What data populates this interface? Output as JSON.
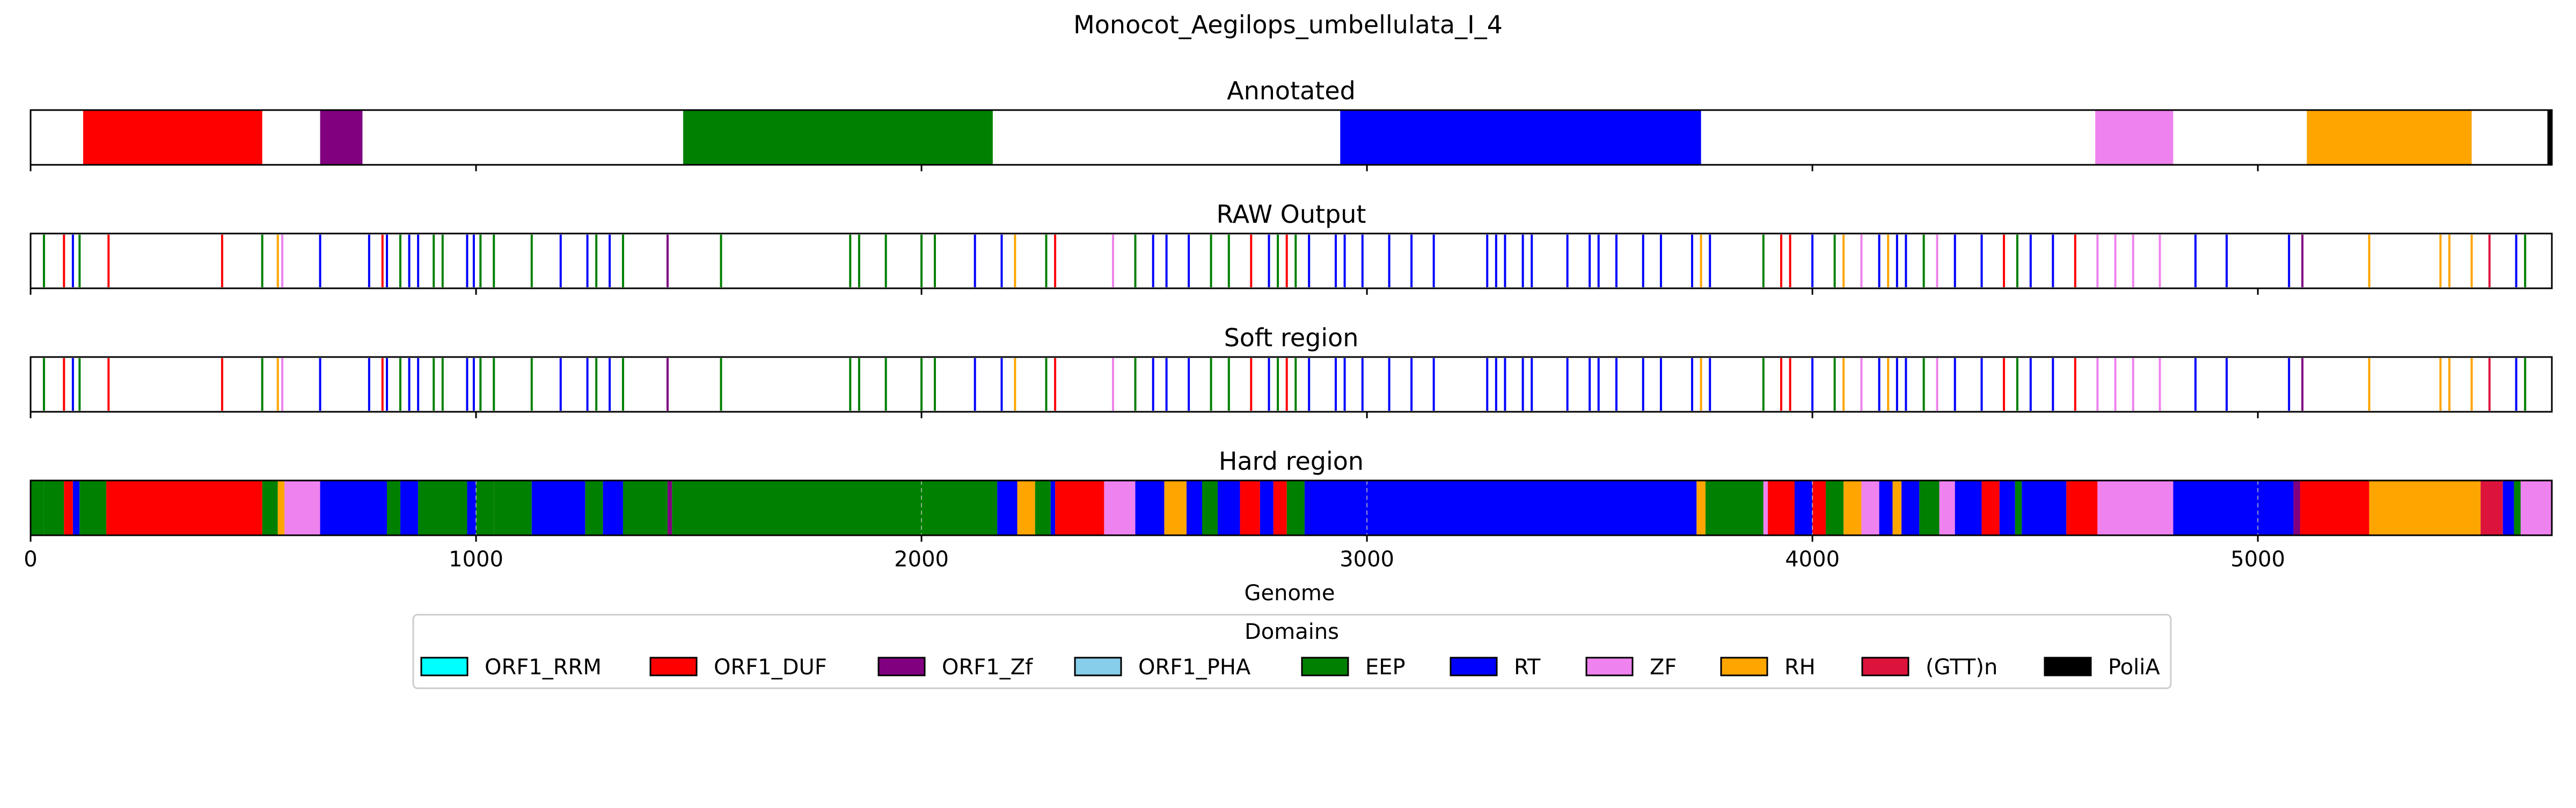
{
  "chart_data": {
    "type": "genome-domain-tracks",
    "title": "Monocot_Aegilops_umbellulata_I_4",
    "xlabel": "Genome",
    "xlim": [
      0,
      5660
    ],
    "x_ticks": [
      0,
      1000,
      2000,
      3000,
      4000,
      5000
    ],
    "legend_title": "Domains",
    "legend_placement": "bottom-center",
    "legend": [
      {
        "name": "ORF1_RRM",
        "color": "#00FFFF"
      },
      {
        "name": "ORF1_DUF",
        "color": "#FF0000"
      },
      {
        "name": "ORF1_Zf",
        "color": "#800080"
      },
      {
        "name": "ORF1_PHA",
        "color": "#87CEEB"
      },
      {
        "name": "EEP",
        "color": "#008000"
      },
      {
        "name": "RT",
        "color": "#0000FF"
      },
      {
        "name": "ZF",
        "color": "#EE82EE"
      },
      {
        "name": "RH",
        "color": "#FFA500"
      },
      {
        "name": "(GTT)n",
        "color": "#DC143C"
      },
      {
        "name": "PoliA",
        "color": "#000000"
      }
    ],
    "tracks": [
      {
        "title": "Annotated",
        "kind": "segments",
        "segments": [
          {
            "start": 118,
            "end": 520,
            "domain": "ORF1_DUF"
          },
          {
            "start": 650,
            "end": 745,
            "domain": "ORF1_Zf"
          },
          {
            "start": 1465,
            "end": 2160,
            "domain": "EEP"
          },
          {
            "start": 2940,
            "end": 3750,
            "domain": "RT"
          },
          {
            "start": 4635,
            "end": 4810,
            "domain": "ZF"
          },
          {
            "start": 5110,
            "end": 5480,
            "domain": "RH"
          },
          {
            "start": 5650,
            "end": 5660,
            "domain": "PoliA"
          }
        ]
      },
      {
        "title": "RAW Output",
        "kind": "lines",
        "lines": [
          {
            "x": 30,
            "domain": "EEP"
          },
          {
            "x": 75,
            "domain": "ORF1_DUF"
          },
          {
            "x": 95,
            "domain": "RT"
          },
          {
            "x": 110,
            "domain": "EEP"
          },
          {
            "x": 175,
            "domain": "ORF1_DUF"
          },
          {
            "x": 430,
            "domain": "ORF1_DUF"
          },
          {
            "x": 520,
            "domain": "EEP"
          },
          {
            "x": 555,
            "domain": "RH"
          },
          {
            "x": 565,
            "domain": "ZF"
          },
          {
            "x": 650,
            "domain": "RT"
          },
          {
            "x": 760,
            "domain": "RT"
          },
          {
            "x": 790,
            "domain": "ORF1_DUF"
          },
          {
            "x": 800,
            "domain": "RT"
          },
          {
            "x": 830,
            "domain": "EEP"
          },
          {
            "x": 850,
            "domain": "RT"
          },
          {
            "x": 870,
            "domain": "RT"
          },
          {
            "x": 905,
            "domain": "EEP"
          },
          {
            "x": 925,
            "domain": "EEP"
          },
          {
            "x": 980,
            "domain": "RT"
          },
          {
            "x": 995,
            "domain": "RT"
          },
          {
            "x": 1010,
            "domain": "EEP"
          },
          {
            "x": 1040,
            "domain": "EEP"
          },
          {
            "x": 1125,
            "domain": "EEP"
          },
          {
            "x": 1190,
            "domain": "RT"
          },
          {
            "x": 1250,
            "domain": "RT"
          },
          {
            "x": 1270,
            "domain": "EEP"
          },
          {
            "x": 1300,
            "domain": "RT"
          },
          {
            "x": 1330,
            "domain": "EEP"
          },
          {
            "x": 1430,
            "domain": "ORF1_Zf"
          },
          {
            "x": 1550,
            "domain": "EEP"
          },
          {
            "x": 1840,
            "domain": "EEP"
          },
          {
            "x": 1860,
            "domain": "EEP"
          },
          {
            "x": 1920,
            "domain": "EEP"
          },
          {
            "x": 2000,
            "domain": "EEP"
          },
          {
            "x": 2030,
            "domain": "EEP"
          },
          {
            "x": 2120,
            "domain": "RT"
          },
          {
            "x": 2180,
            "domain": "RT"
          },
          {
            "x": 2210,
            "domain": "RH"
          },
          {
            "x": 2280,
            "domain": "EEP"
          },
          {
            "x": 2300,
            "domain": "ORF1_DUF"
          },
          {
            "x": 2430,
            "domain": "ZF"
          },
          {
            "x": 2480,
            "domain": "EEP"
          },
          {
            "x": 2520,
            "domain": "RT"
          },
          {
            "x": 2550,
            "domain": "RT"
          },
          {
            "x": 2600,
            "domain": "RT"
          },
          {
            "x": 2650,
            "domain": "EEP"
          },
          {
            "x": 2690,
            "domain": "EEP"
          },
          {
            "x": 2740,
            "domain": "ORF1_DUF"
          },
          {
            "x": 2780,
            "domain": "RT"
          },
          {
            "x": 2800,
            "domain": "EEP"
          },
          {
            "x": 2820,
            "domain": "ORF1_DUF"
          },
          {
            "x": 2840,
            "domain": "EEP"
          },
          {
            "x": 2870,
            "domain": "RT"
          },
          {
            "x": 2930,
            "domain": "RT"
          },
          {
            "x": 2950,
            "domain": "RT"
          },
          {
            "x": 2990,
            "domain": "RT"
          },
          {
            "x": 3050,
            "domain": "RT"
          },
          {
            "x": 3100,
            "domain": "RT"
          },
          {
            "x": 3150,
            "domain": "RT"
          },
          {
            "x": 3270,
            "domain": "RT"
          },
          {
            "x": 3290,
            "domain": "RT"
          },
          {
            "x": 3310,
            "domain": "RT"
          },
          {
            "x": 3350,
            "domain": "RT"
          },
          {
            "x": 3370,
            "domain": "RT"
          },
          {
            "x": 3450,
            "domain": "RT"
          },
          {
            "x": 3500,
            "domain": "RT"
          },
          {
            "x": 3520,
            "domain": "RT"
          },
          {
            "x": 3560,
            "domain": "RT"
          },
          {
            "x": 3620,
            "domain": "RT"
          },
          {
            "x": 3660,
            "domain": "RT"
          },
          {
            "x": 3730,
            "domain": "RT"
          },
          {
            "x": 3750,
            "domain": "RH"
          },
          {
            "x": 3770,
            "domain": "RT"
          },
          {
            "x": 3890,
            "domain": "EEP"
          },
          {
            "x": 3930,
            "domain": "ORF1_DUF"
          },
          {
            "x": 3950,
            "domain": "ORF1_DUF"
          },
          {
            "x": 4000,
            "domain": "RT"
          },
          {
            "x": 4050,
            "domain": "EEP"
          },
          {
            "x": 4070,
            "domain": "RH"
          },
          {
            "x": 4110,
            "domain": "ZF"
          },
          {
            "x": 4150,
            "domain": "RT"
          },
          {
            "x": 4170,
            "domain": "RH"
          },
          {
            "x": 4190,
            "domain": "RT"
          },
          {
            "x": 4210,
            "domain": "RT"
          },
          {
            "x": 4250,
            "domain": "EEP"
          },
          {
            "x": 4280,
            "domain": "ZF"
          },
          {
            "x": 4320,
            "domain": "RT"
          },
          {
            "x": 4380,
            "domain": "RT"
          },
          {
            "x": 4430,
            "domain": "ORF1_DUF"
          },
          {
            "x": 4460,
            "domain": "EEP"
          },
          {
            "x": 4490,
            "domain": "RT"
          },
          {
            "x": 4540,
            "domain": "RT"
          },
          {
            "x": 4590,
            "domain": "ORF1_DUF"
          },
          {
            "x": 4640,
            "domain": "ZF"
          },
          {
            "x": 4680,
            "domain": "ZF"
          },
          {
            "x": 4720,
            "domain": "ZF"
          },
          {
            "x": 4780,
            "domain": "ZF"
          },
          {
            "x": 4860,
            "domain": "RT"
          },
          {
            "x": 4930,
            "domain": "RT"
          },
          {
            "x": 5070,
            "domain": "RT"
          },
          {
            "x": 5100,
            "domain": "ORF1_Zf"
          },
          {
            "x": 5250,
            "domain": "RH"
          },
          {
            "x": 5410,
            "domain": "RH"
          },
          {
            "x": 5430,
            "domain": "RH"
          },
          {
            "x": 5480,
            "domain": "RH"
          },
          {
            "x": 5520,
            "domain": "(GTT)n"
          },
          {
            "x": 5580,
            "domain": "RT"
          },
          {
            "x": 5600,
            "domain": "EEP"
          }
        ]
      },
      {
        "title": "Soft region",
        "kind": "lines",
        "same_as": "RAW Output"
      },
      {
        "title": "Hard region",
        "kind": "segments",
        "segments": [
          {
            "start": 0,
            "end": 30,
            "domain": "EEP"
          },
          {
            "start": 30,
            "end": 75,
            "domain": "EEP"
          },
          {
            "start": 75,
            "end": 95,
            "domain": "ORF1_DUF"
          },
          {
            "start": 95,
            "end": 110,
            "domain": "RT"
          },
          {
            "start": 110,
            "end": 170,
            "domain": "EEP"
          },
          {
            "start": 170,
            "end": 520,
            "domain": "ORF1_DUF"
          },
          {
            "start": 520,
            "end": 555,
            "domain": "EEP"
          },
          {
            "start": 555,
            "end": 570,
            "domain": "RH"
          },
          {
            "start": 570,
            "end": 650,
            "domain": "ZF"
          },
          {
            "start": 650,
            "end": 800,
            "domain": "RT"
          },
          {
            "start": 800,
            "end": 830,
            "domain": "EEP"
          },
          {
            "start": 830,
            "end": 870,
            "domain": "RT"
          },
          {
            "start": 870,
            "end": 980,
            "domain": "EEP"
          },
          {
            "start": 980,
            "end": 1000,
            "domain": "RT"
          },
          {
            "start": 1000,
            "end": 1040,
            "domain": "EEP"
          },
          {
            "start": 1040,
            "end": 1125,
            "domain": "EEP"
          },
          {
            "start": 1125,
            "end": 1245,
            "domain": "RT"
          },
          {
            "start": 1245,
            "end": 1285,
            "domain": "EEP"
          },
          {
            "start": 1285,
            "end": 1330,
            "domain": "RT"
          },
          {
            "start": 1330,
            "end": 1430,
            "domain": "EEP"
          },
          {
            "start": 1430,
            "end": 1440,
            "domain": "ORF1_Zf"
          },
          {
            "start": 1440,
            "end": 2170,
            "domain": "EEP"
          },
          {
            "start": 2170,
            "end": 2215,
            "domain": "RT"
          },
          {
            "start": 2215,
            "end": 2255,
            "domain": "RH"
          },
          {
            "start": 2255,
            "end": 2290,
            "domain": "EEP"
          },
          {
            "start": 2290,
            "end": 2300,
            "domain": "RT"
          },
          {
            "start": 2300,
            "end": 2410,
            "domain": "ORF1_DUF"
          },
          {
            "start": 2410,
            "end": 2480,
            "domain": "ZF"
          },
          {
            "start": 2480,
            "end": 2545,
            "domain": "RT"
          },
          {
            "start": 2545,
            "end": 2595,
            "domain": "RH"
          },
          {
            "start": 2595,
            "end": 2630,
            "domain": "RT"
          },
          {
            "start": 2630,
            "end": 2665,
            "domain": "EEP"
          },
          {
            "start": 2665,
            "end": 2715,
            "domain": "RT"
          },
          {
            "start": 2715,
            "end": 2760,
            "domain": "ORF1_DUF"
          },
          {
            "start": 2760,
            "end": 2790,
            "domain": "RT"
          },
          {
            "start": 2790,
            "end": 2820,
            "domain": "ORF1_DUF"
          },
          {
            "start": 2820,
            "end": 2860,
            "domain": "EEP"
          },
          {
            "start": 2860,
            "end": 3740,
            "domain": "RT"
          },
          {
            "start": 3740,
            "end": 3760,
            "domain": "RH"
          },
          {
            "start": 3760,
            "end": 3890,
            "domain": "EEP"
          },
          {
            "start": 3890,
            "end": 3900,
            "domain": "ZF"
          },
          {
            "start": 3900,
            "end": 3960,
            "domain": "ORF1_DUF"
          },
          {
            "start": 3960,
            "end": 4000,
            "domain": "RT"
          },
          {
            "start": 4000,
            "end": 4030,
            "domain": "ORF1_DUF"
          },
          {
            "start": 4030,
            "end": 4070,
            "domain": "EEP"
          },
          {
            "start": 4070,
            "end": 4110,
            "domain": "RH"
          },
          {
            "start": 4110,
            "end": 4150,
            "domain": "ZF"
          },
          {
            "start": 4150,
            "end": 4180,
            "domain": "RT"
          },
          {
            "start": 4180,
            "end": 4200,
            "domain": "RH"
          },
          {
            "start": 4200,
            "end": 4240,
            "domain": "RT"
          },
          {
            "start": 4240,
            "end": 4285,
            "domain": "EEP"
          },
          {
            "start": 4285,
            "end": 4320,
            "domain": "ZF"
          },
          {
            "start": 4320,
            "end": 4380,
            "domain": "RT"
          },
          {
            "start": 4380,
            "end": 4420,
            "domain": "ORF1_DUF"
          },
          {
            "start": 4420,
            "end": 4455,
            "domain": "RT"
          },
          {
            "start": 4455,
            "end": 4470,
            "domain": "EEP"
          },
          {
            "start": 4470,
            "end": 4570,
            "domain": "RT"
          },
          {
            "start": 4570,
            "end": 4640,
            "domain": "ORF1_DUF"
          },
          {
            "start": 4640,
            "end": 4810,
            "domain": "ZF"
          },
          {
            "start": 4810,
            "end": 5080,
            "domain": "RT"
          },
          {
            "start": 5080,
            "end": 5095,
            "domain": "ORF1_Zf"
          },
          {
            "start": 5095,
            "end": 5250,
            "domain": "ORF1_DUF"
          },
          {
            "start": 5250,
            "end": 5500,
            "domain": "RH"
          },
          {
            "start": 5500,
            "end": 5550,
            "domain": "(GTT)n"
          },
          {
            "start": 5550,
            "end": 5575,
            "domain": "RT"
          },
          {
            "start": 5575,
            "end": 5590,
            "domain": "EEP"
          },
          {
            "start": 5590,
            "end": 5660,
            "domain": "ZF"
          }
        ]
      }
    ]
  }
}
